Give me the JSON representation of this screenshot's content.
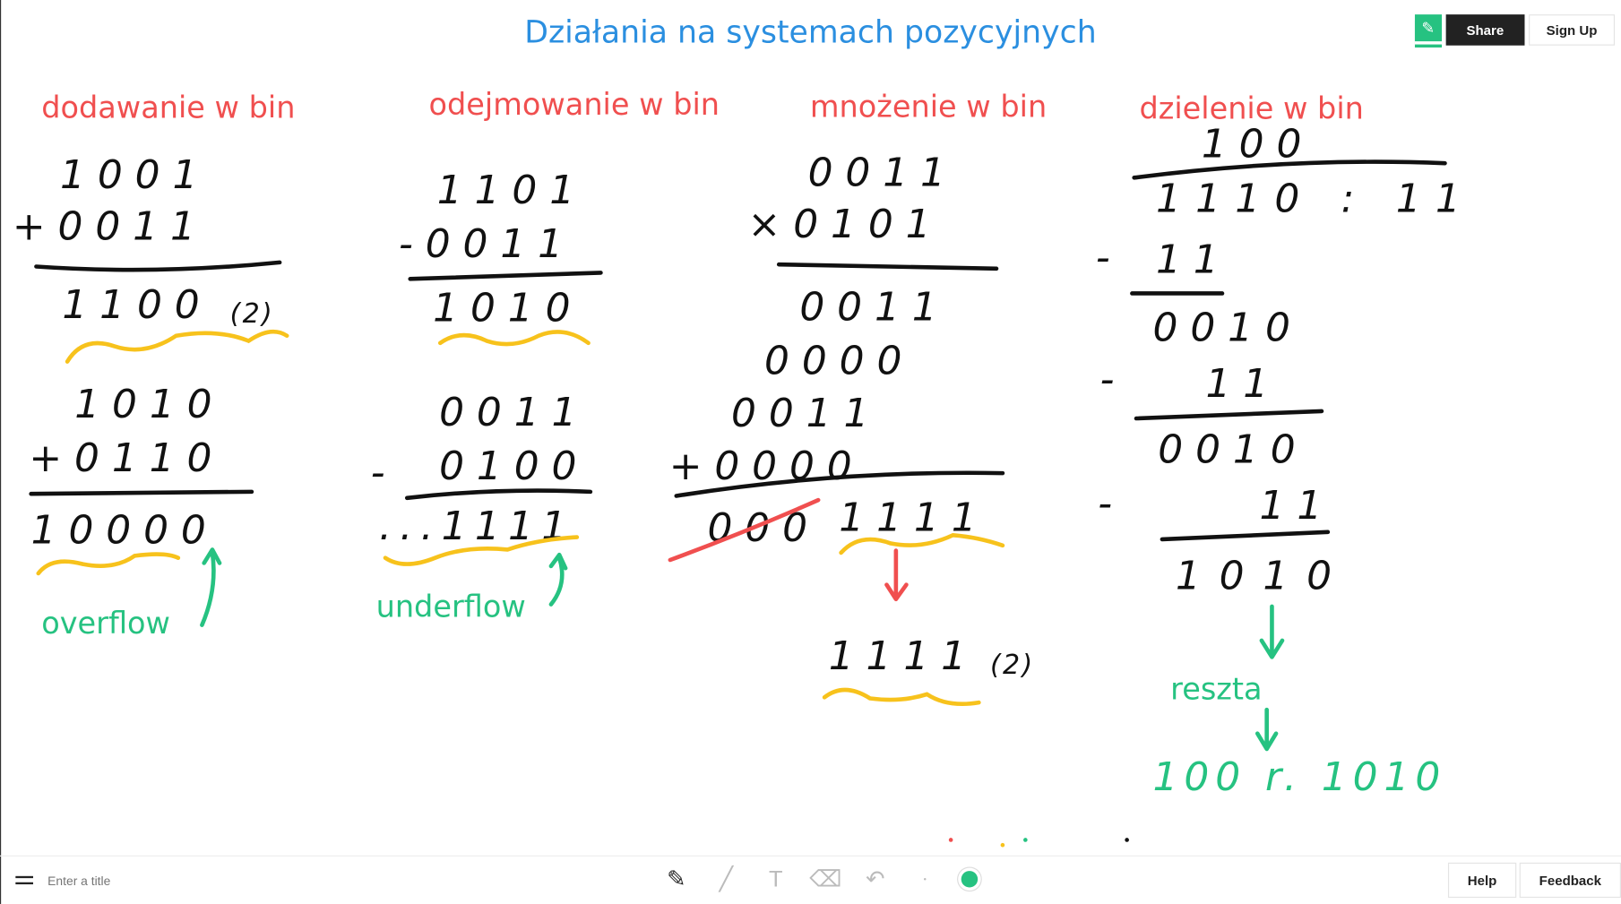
{
  "header": {
    "title": "Działania na systemach pozycyjnych",
    "share_label": "Share",
    "signup_label": "Sign Up",
    "logo_icon": "lobster-icon"
  },
  "sections": {
    "addition": {
      "heading": "dodawanie w bin",
      "p1": [
        "1001",
        "+0011",
        "1100",
        "(2)"
      ],
      "p2": [
        "1010",
        "+0110",
        "10000"
      ],
      "note": "overflow"
    },
    "subtraction": {
      "heading": "odejmowanie w bin",
      "p1": [
        "1101",
        "-0011",
        "1010"
      ],
      "p2": [
        "0011",
        "-",
        "0100",
        "...1111"
      ],
      "note": "underflow"
    },
    "multiplication": {
      "heading": "mnożenie w bin",
      "rows": [
        "0011",
        "×0101",
        "0011",
        "0000",
        "0011",
        "+0000",
        "000",
        "1111"
      ],
      "result": "1111",
      "result_base": "(2)"
    },
    "division": {
      "heading": "dzielenie w bin",
      "quotient": "100",
      "dividend": "1110 : 11",
      "minus": "-",
      "rows": [
        "11",
        "0010",
        "11",
        "0010",
        "11",
        "1010"
      ],
      "note": "reszta",
      "answer": "100 r. 1010"
    }
  },
  "colors": {
    "title": "#2b8fe0",
    "heading": "#f04f4f",
    "note": "#26c281",
    "underline": "#f7c21c",
    "ink": "#111111"
  },
  "footer": {
    "title_placeholder": "Enter a title",
    "tools": [
      "pencil-icon",
      "line-icon",
      "text-icon",
      "eraser-icon",
      "undo-icon"
    ],
    "active_color": "#26c281",
    "help_label": "Help",
    "feedback_label": "Feedback"
  }
}
